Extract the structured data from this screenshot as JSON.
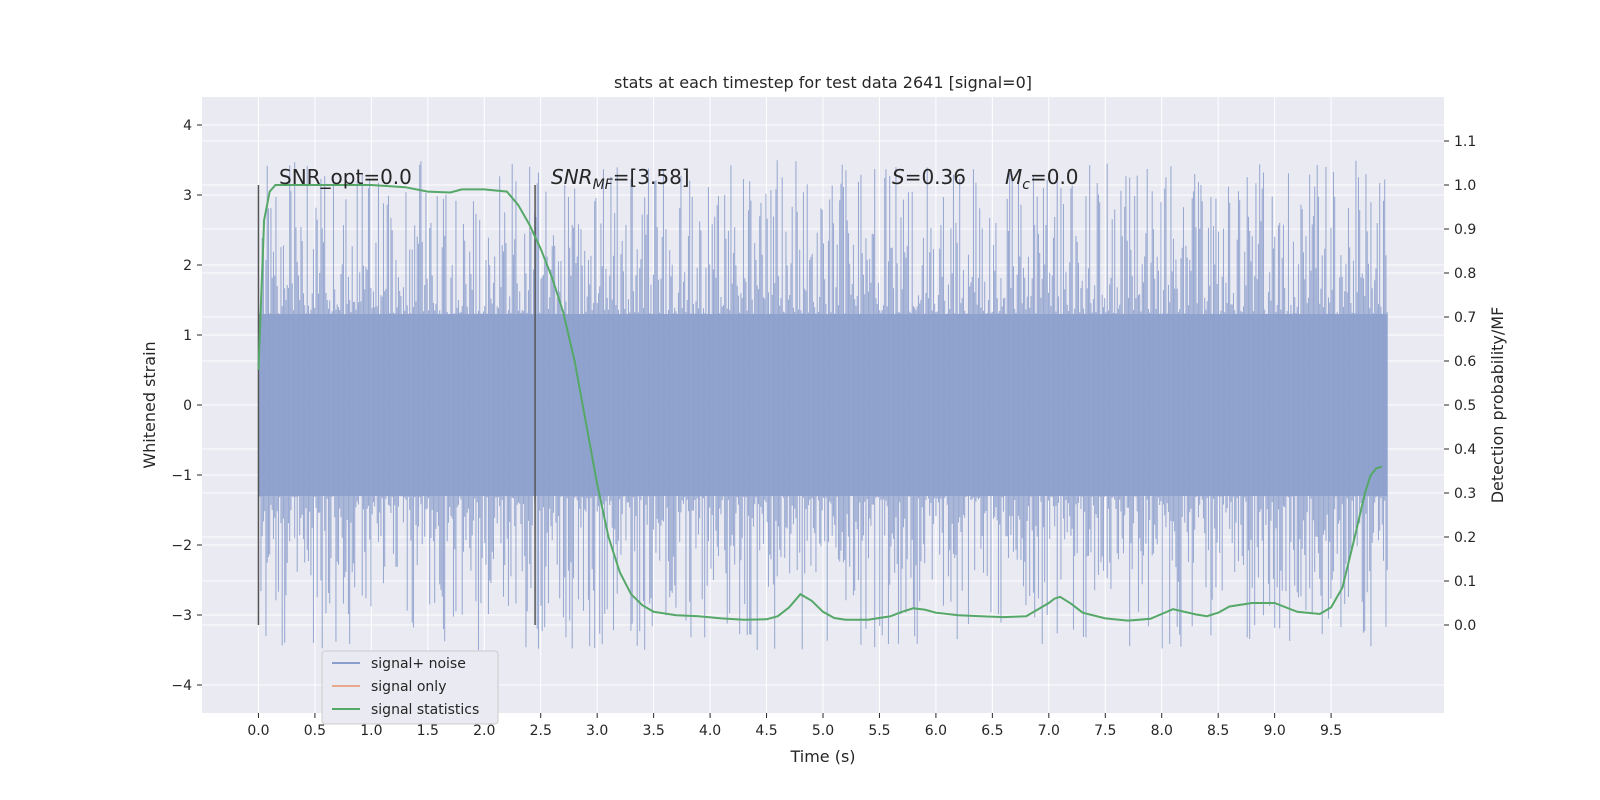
{
  "chart_data": {
    "type": "line",
    "title": "stats at each timestep for test data 2641 [signal=0]",
    "xlabel": "Time (s)",
    "ylabel": "Whitened strain",
    "ylabel_right": "Detection probability/MF",
    "xlim": [
      -0.5,
      10.5
    ],
    "ylim": [
      -4.4,
      4.4
    ],
    "ylim_right": [
      -0.2,
      1.2
    ],
    "x_ticks": [
      "0.0",
      "0.5",
      "1.0",
      "1.5",
      "2.0",
      "2.5",
      "3.0",
      "3.5",
      "4.0",
      "4.5",
      "5.0",
      "5.5",
      "6.0",
      "6.5",
      "7.0",
      "7.5",
      "8.0",
      "8.5",
      "9.0",
      "9.5"
    ],
    "x_tick_values": [
      0,
      0.5,
      1,
      1.5,
      2,
      2.5,
      3,
      3.5,
      4,
      4.5,
      5,
      5.5,
      6,
      6.5,
      7,
      7.5,
      8,
      8.5,
      9,
      9.5
    ],
    "y_ticks": [
      "4",
      "3",
      "2",
      "1",
      "0",
      "−1",
      "−2",
      "−3",
      "−4"
    ],
    "y_tick_values": [
      4,
      3,
      2,
      1,
      0,
      -1,
      -2,
      -3,
      -4
    ],
    "y_right_ticks": [
      "1.1",
      "1.0",
      "0.9",
      "0.8",
      "0.7",
      "0.6",
      "0.5",
      "0.4",
      "0.3",
      "0.2",
      "0.1",
      "0.0"
    ],
    "y_right_tick_values": [
      1.1,
      1.0,
      0.9,
      0.8,
      0.7,
      0.6,
      0.5,
      0.4,
      0.3,
      0.2,
      0.1,
      0.0
    ],
    "grid": true,
    "legend_position": "lower-left",
    "series": [
      {
        "name": "signal+ noise",
        "color": "#8c9fcc",
        "type": "noise",
        "x_range": [
          0,
          10
        ],
        "typical_abs_max": 1.3
      },
      {
        "name": "signal only",
        "color": "#e8a88a",
        "type": "line",
        "values": []
      },
      {
        "name": "signal statistics",
        "color": "#55a868",
        "type": "line",
        "axis": "right",
        "x": [
          0.0,
          0.05,
          0.1,
          0.15,
          0.25,
          0.5,
          1.0,
          1.3,
          1.5,
          1.7,
          1.8,
          2.0,
          2.2,
          2.3,
          2.4,
          2.5,
          2.6,
          2.7,
          2.8,
          2.9,
          3.0,
          3.1,
          3.2,
          3.3,
          3.4,
          3.5,
          3.7,
          3.9,
          4.1,
          4.3,
          4.5,
          4.6,
          4.7,
          4.8,
          4.9,
          5.0,
          5.1,
          5.2,
          5.4,
          5.6,
          5.7,
          5.8,
          5.9,
          6.0,
          6.2,
          6.4,
          6.6,
          6.8,
          7.0,
          7.05,
          7.1,
          7.2,
          7.3,
          7.5,
          7.7,
          7.9,
          8.0,
          8.1,
          8.3,
          8.4,
          8.5,
          8.6,
          8.8,
          9.0,
          9.2,
          9.4,
          9.5,
          9.6,
          9.7,
          9.8,
          9.85,
          9.9,
          9.95
        ],
        "values": [
          0.58,
          0.92,
          0.985,
          1.0,
          1.0,
          1.0,
          1.0,
          0.995,
          0.985,
          0.983,
          0.99,
          0.99,
          0.985,
          0.955,
          0.91,
          0.855,
          0.79,
          0.71,
          0.6,
          0.46,
          0.32,
          0.2,
          0.12,
          0.07,
          0.045,
          0.03,
          0.022,
          0.02,
          0.015,
          0.012,
          0.013,
          0.02,
          0.04,
          0.07,
          0.055,
          0.03,
          0.016,
          0.012,
          0.012,
          0.02,
          0.03,
          0.038,
          0.035,
          0.028,
          0.022,
          0.02,
          0.018,
          0.02,
          0.05,
          0.06,
          0.064,
          0.048,
          0.028,
          0.015,
          0.01,
          0.014,
          0.025,
          0.036,
          0.024,
          0.02,
          0.028,
          0.042,
          0.05,
          0.05,
          0.03,
          0.025,
          0.04,
          0.085,
          0.19,
          0.3,
          0.34,
          0.356,
          0.36
        ]
      }
    ],
    "vertical_markers": [
      0.0,
      2.45
    ],
    "annotations": {
      "snr_opt": "SNR_opt=0.0",
      "snr_mf_base": "SNR",
      "snr_mf_sub": "MF",
      "snr_mf_val": "=[3.58]",
      "s_sym": "S",
      "s_val": "=0.36",
      "mc_base": "M",
      "mc_sub": "c",
      "mc_val": "=0.0"
    }
  }
}
